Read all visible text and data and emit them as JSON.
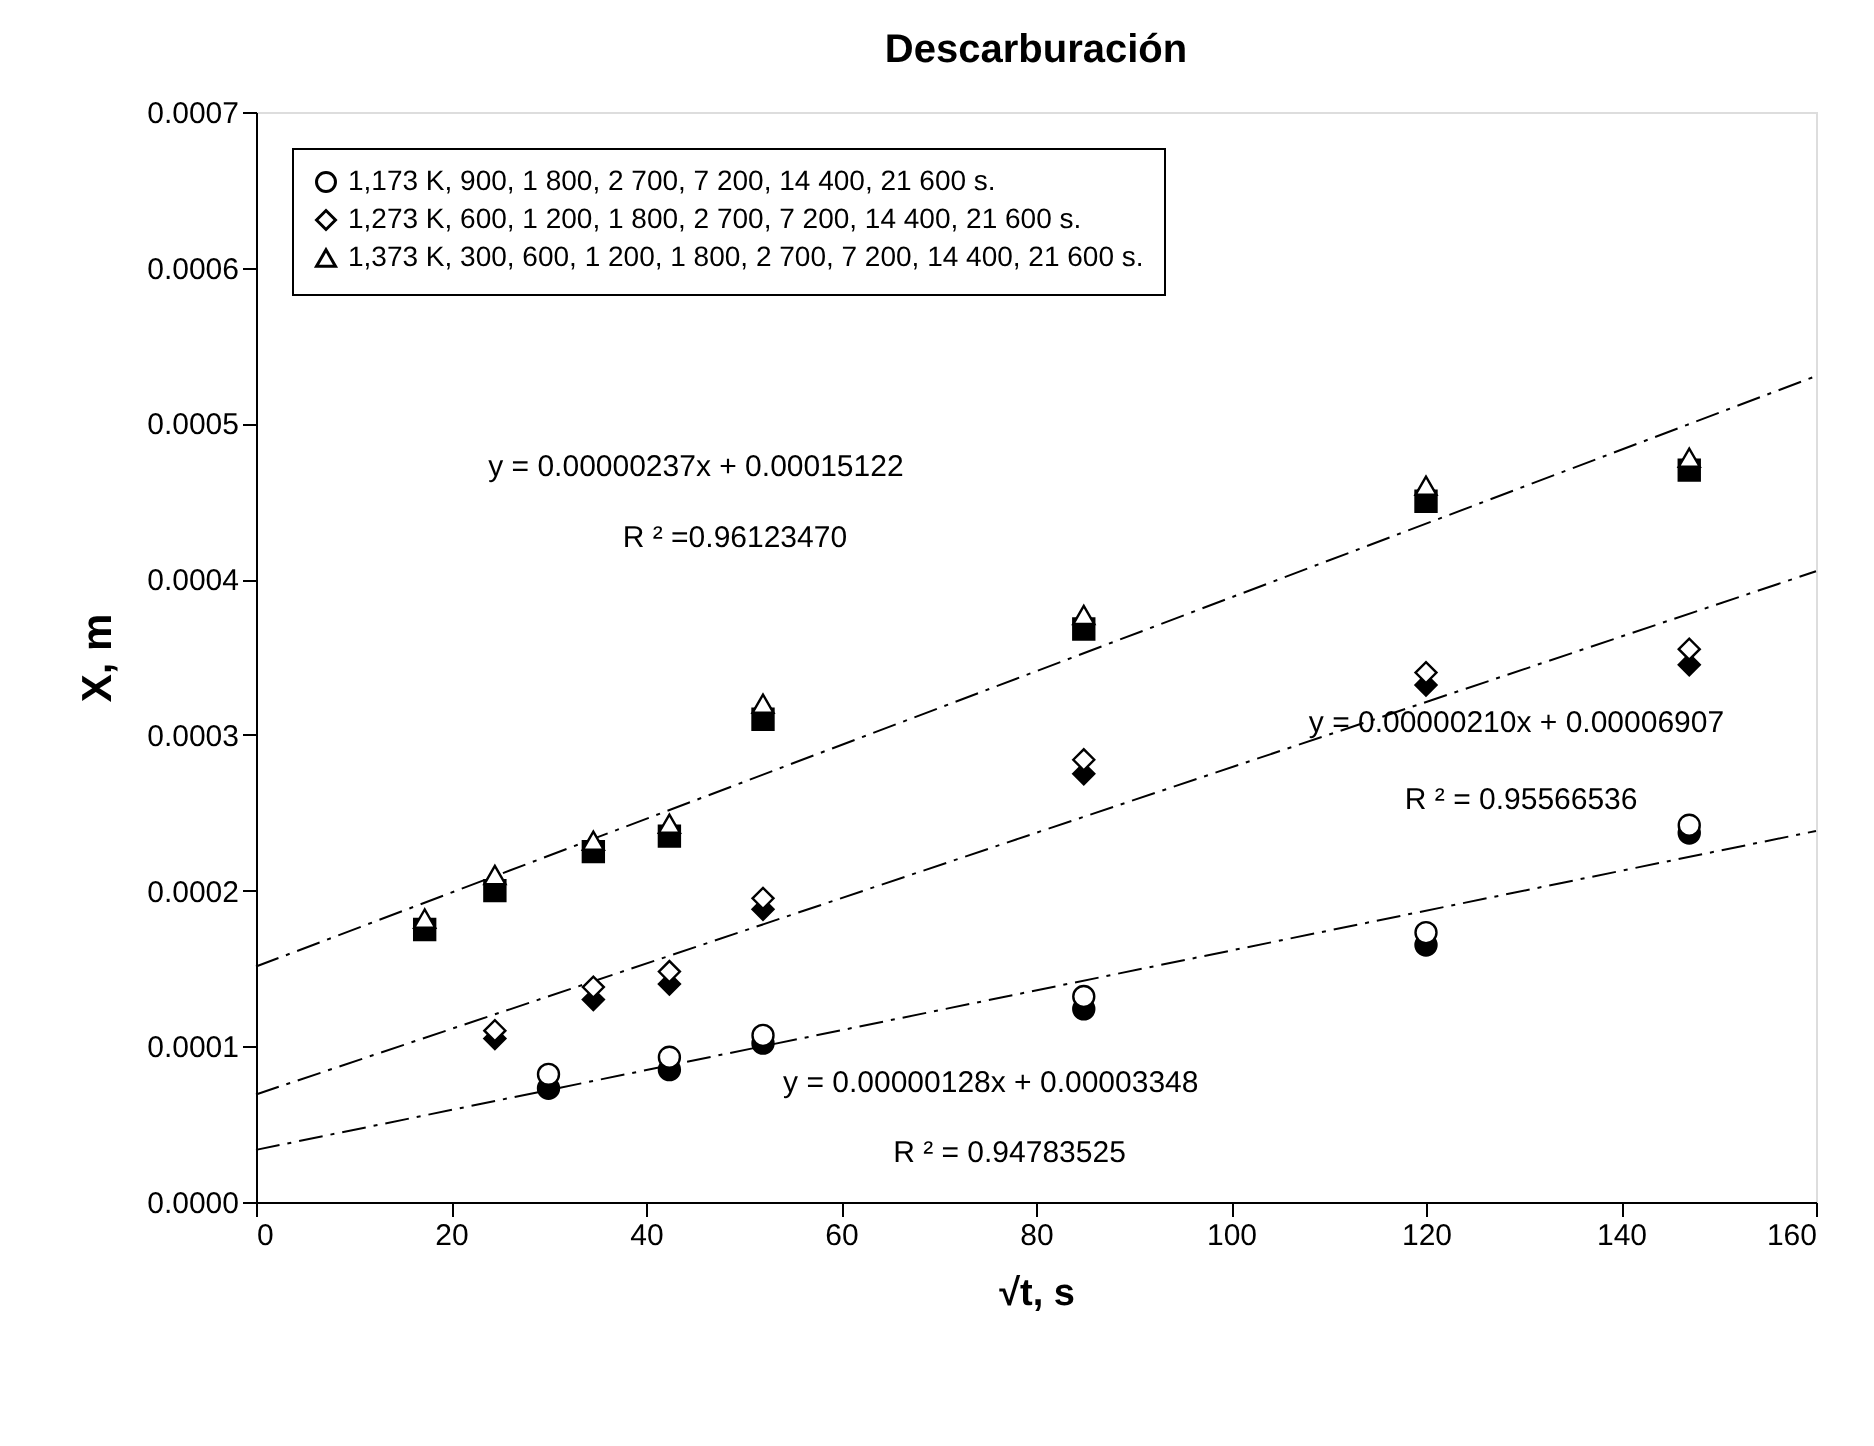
{
  "chart_data": {
    "type": "scatter",
    "title": "Descarburación",
    "xlabel": "√t, s",
    "ylabel": "X, m",
    "xlim": [
      0,
      160
    ],
    "xticks": [
      0,
      20,
      40,
      60,
      80,
      100,
      120,
      140,
      160
    ],
    "ylim": [
      0,
      0.0007
    ],
    "yticks": [
      {
        "value": 0,
        "label": "0.0000"
      },
      {
        "value": 0.0001,
        "label": "0.0001"
      },
      {
        "value": 0.0002,
        "label": "0.0002"
      },
      {
        "value": 0.0003,
        "label": "0.0003"
      },
      {
        "value": 0.0004,
        "label": "0.0004"
      },
      {
        "value": 0.0005,
        "label": "0.0005"
      },
      {
        "value": 0.0006,
        "label": "0.0006"
      },
      {
        "value": 0.0007,
        "label": "0.0007"
      }
    ],
    "grid": false,
    "legend": "top left",
    "series": [
      {
        "type": "line",
        "line_style": "dashed",
        "color": "#000000",
        "x": [
          0,
          160
        ],
        "values": [
          0.00015122,
          0.00053042
        ]
      },
      {
        "type": "line",
        "line_style": "dashed",
        "color": "#000000",
        "x": [
          0,
          160
        ],
        "values": [
          6.907e-05,
          0.00040507
        ]
      },
      {
        "type": "line",
        "line_style": "dashed",
        "color": "#000000",
        "x": [
          0,
          160
        ],
        "values": [
          3.348e-05,
          0.00023828
        ]
      },
      {
        "marker": "circle",
        "color": "#000000",
        "x": [
          30,
          42.4,
          52,
          84.9,
          120,
          147
        ],
        "values": [
          7.3e-05,
          8.5e-05,
          0.000102,
          0.000124,
          0.000165,
          0.000237
        ]
      },
      {
        "marker": "diamond",
        "color": "#000000",
        "x": [
          24.5,
          34.6,
          42.4,
          52,
          84.9,
          120,
          147
        ],
        "values": [
          0.000105,
          0.00013,
          0.00014,
          0.000188,
          0.000275,
          0.000332,
          0.000345
        ]
      },
      {
        "marker": "square",
        "color": "#000000",
        "x": [
          17.3,
          24.5,
          34.6,
          42.4,
          52,
          84.9,
          120,
          147
        ],
        "values": [
          0.000175,
          0.0002,
          0.000225,
          0.000235,
          0.00031,
          0.000368,
          0.00045,
          0.00047
        ]
      },
      {
        "name": "1,173 K, 900, 1 800, 2 700, 7 200, 14 400, 21 600 s.",
        "marker": "circle",
        "color": "#ffffff",
        "x": [
          30,
          42.4,
          52,
          84.9,
          120,
          147
        ],
        "values": [
          8.2e-05,
          9.3e-05,
          0.000107,
          0.000132,
          0.000173,
          0.000242
        ]
      },
      {
        "name": "1,273 K, 600, 1 200, 1 800, 2 700, 7 200, 14 400, 21 600 s.",
        "marker": "diamond",
        "color": "#ffffff",
        "x": [
          24.5,
          34.6,
          42.4,
          52,
          84.9,
          120,
          147
        ],
        "values": [
          0.00011,
          0.000138,
          0.000148,
          0.000195,
          0.000284,
          0.00034,
          0.000355
        ]
      },
      {
        "name": "1,373 K, 300, 600, 1 200, 1 800, 2 700, 7 200, 14 400, 21 600 s.",
        "marker": "triangle",
        "color": "#ffffff",
        "x": [
          17.3,
          24.5,
          34.6,
          42.4,
          52,
          84.9,
          120,
          147
        ],
        "values": [
          0.000182,
          0.00021,
          0.000232,
          0.000243,
          0.00032,
          0.000377,
          0.00046,
          0.000478
        ]
      }
    ],
    "annotations": [
      "y = 0.00000237x + 0.00015122",
      "R ² =0.96123470",
      "y = 0.00000210x + 0.00006907",
      "R ² = 0.95566536",
      "y = 0.00000128x + 0.00003348",
      "R ² = 0.94783525"
    ]
  }
}
